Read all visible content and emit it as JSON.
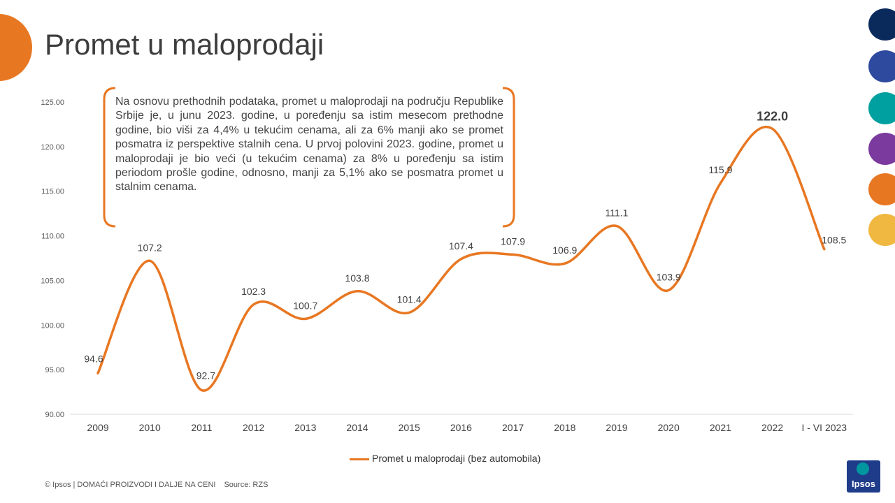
{
  "slide": {
    "title": "Promet u maloprodaji",
    "note": "Na osnovu prethodnih podataka, promet u maloprodaji na području Republike Srbije je, u junu 2023. godine, u poređenju sa istim mesecom prethodne godine, bio viši za 4,4% u tekućim cenama, ali za 6% manji ako se promet posmatra iz perspektive stalnih cena. U prvoj polovini 2023. godine, promet u maloprodaji je bio veći (u tekućim cenama) za 8% u poređenju sa istim periodom prošle godine, odnosno, manji za 5,1% ako se posmatra promet u stalnim cenama.",
    "footer": "© Ipsos | DOMAĆI PROIZVODI I DALJE NA CENI",
    "source": "Source: RZS",
    "logo": "Ipsos"
  },
  "colors": {
    "accent": "#e87722",
    "side_dots": [
      "#0a2a5c",
      "#2e4a9e",
      "#00a0a0",
      "#7a3a9e",
      "#e87722",
      "#f0b840"
    ]
  },
  "chart_data": {
    "type": "line",
    "categories": [
      "2009",
      "2010",
      "2011",
      "2012",
      "2013",
      "2014",
      "2015",
      "2016",
      "2017",
      "2018",
      "2019",
      "2020",
      "2021",
      "2022",
      "I - VI 2023"
    ],
    "series": [
      {
        "name": "Promet u maloprodaji (bez automobila)",
        "values": [
          94.6,
          107.2,
          92.7,
          102.3,
          100.7,
          103.8,
          101.4,
          107.4,
          107.9,
          106.9,
          111.1,
          103.9,
          115.9,
          122.0,
          108.5
        ]
      }
    ],
    "data_labels": [
      "94.6",
      "107.2",
      "92.7",
      "102.3",
      "100.7",
      "103.8",
      "101.4",
      "107.4",
      "107.9",
      "106.9",
      "111.1",
      "103.9",
      "115.9",
      "122.0",
      "108.5"
    ],
    "highlight_label_index": 13,
    "ylim": [
      90,
      125
    ],
    "yticks": [
      "90.00",
      "95.00",
      "100.00",
      "105.00",
      "110.00",
      "115.00",
      "120.00",
      "125.00"
    ],
    "grid": false,
    "legend": "bottom"
  }
}
